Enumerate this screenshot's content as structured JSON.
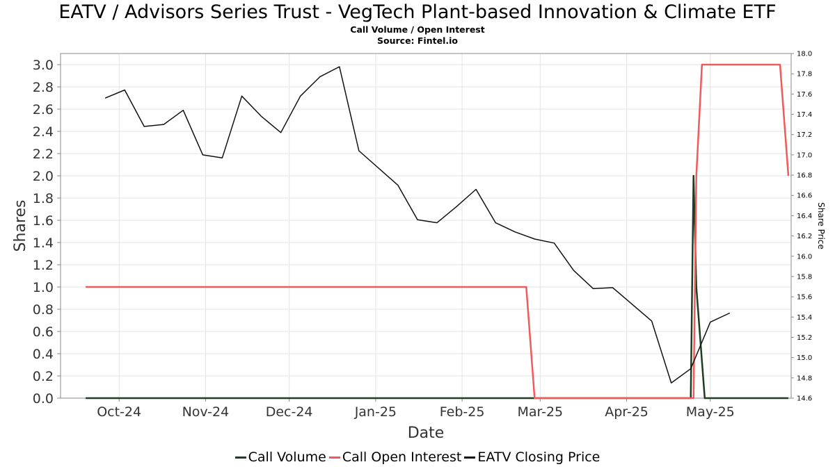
{
  "header": {
    "title": "EATV / Advisors Series Trust - VegTech Plant-based Innovation & Climate ETF",
    "subtitle_1": "Call Volume / Open Interest",
    "subtitle_2": "Source: Fintel.io"
  },
  "legend": {
    "items": [
      {
        "label": "Call Volume",
        "color": "#1e3d23"
      },
      {
        "label": "Call Open Interest",
        "color": "#f05a5a"
      },
      {
        "label": "EATV Closing Price",
        "color": "#111111"
      }
    ]
  },
  "chart_data": {
    "type": "line",
    "xlabel": "Date",
    "ylabel": "Shares",
    "y2label": "Share Price",
    "x_tick_labels": [
      "Oct-24",
      "Nov-24",
      "Dec-24",
      "Jan-25",
      "Feb-25",
      "Mar-25",
      "Apr-25",
      "May-25"
    ],
    "x_tick_dates": [
      "2024-10-01",
      "2024-11-01",
      "2024-12-01",
      "2025-01-01",
      "2025-02-01",
      "2025-03-01",
      "2025-04-01",
      "2025-05-01"
    ],
    "xlim": [
      "2024-09-10",
      "2025-05-30"
    ],
    "ylim": [
      0,
      3.1
    ],
    "y_ticks": [
      "0.0",
      "0.2",
      "0.4",
      "0.6",
      "0.8",
      "1.0",
      "1.2",
      "1.4",
      "1.6",
      "1.8",
      "2.0",
      "2.2",
      "2.4",
      "2.6",
      "2.8",
      "3.0"
    ],
    "y2lim": [
      14.6,
      18.0
    ],
    "y2_ticks": [
      "14.6",
      "14.8",
      "15.0",
      "15.2",
      "15.4",
      "15.6",
      "15.8",
      "16.0",
      "16.2",
      "16.4",
      "16.6",
      "16.8",
      "17.0",
      "17.2",
      "17.4",
      "17.6",
      "17.8",
      "18.0"
    ],
    "grid": true,
    "legend_position": "bottom",
    "series": [
      {
        "name": "Call Volume",
        "color": "#1e3d23",
        "axis": "left",
        "points": [
          {
            "x": "2024-09-19",
            "y": 0
          },
          {
            "x": "2025-04-24",
            "y": 0
          },
          {
            "x": "2025-04-25",
            "y": 2.0
          },
          {
            "x": "2025-04-26",
            "y": 1.0
          },
          {
            "x": "2025-04-29",
            "y": 0
          },
          {
            "x": "2025-05-29",
            "y": 0
          }
        ]
      },
      {
        "name": "Call Open Interest",
        "color": "#f05a5a",
        "axis": "left",
        "points": [
          {
            "x": "2024-09-19",
            "y": 1.0
          },
          {
            "x": "2025-02-24",
            "y": 1.0
          },
          {
            "x": "2025-02-27",
            "y": 0
          },
          {
            "x": "2025-04-25",
            "y": 0
          },
          {
            "x": "2025-04-26",
            "y": 2.0
          },
          {
            "x": "2025-04-28",
            "y": 3.0
          },
          {
            "x": "2025-05-26",
            "y": 3.0
          },
          {
            "x": "2025-05-29",
            "y": 2.0
          }
        ]
      },
      {
        "name": "EATV Closing Price",
        "color": "#111111",
        "axis": "right",
        "points": [
          {
            "x": "2024-09-26",
            "y": 17.56
          },
          {
            "x": "2024-10-03",
            "y": 17.64
          },
          {
            "x": "2024-10-10",
            "y": 17.28
          },
          {
            "x": "2024-10-17",
            "y": 17.3
          },
          {
            "x": "2024-10-24",
            "y": 17.44
          },
          {
            "x": "2024-10-31",
            "y": 17.0
          },
          {
            "x": "2024-11-07",
            "y": 16.97
          },
          {
            "x": "2024-11-14",
            "y": 17.58
          },
          {
            "x": "2024-11-21",
            "y": 17.38
          },
          {
            "x": "2024-11-28",
            "y": 17.22
          },
          {
            "x": "2024-12-05",
            "y": 17.58
          },
          {
            "x": "2024-12-12",
            "y": 17.77
          },
          {
            "x": "2024-12-19",
            "y": 17.87
          },
          {
            "x": "2024-12-26",
            "y": 17.04
          },
          {
            "x": "2025-01-09",
            "y": 16.7
          },
          {
            "x": "2025-01-16",
            "y": 16.36
          },
          {
            "x": "2025-01-23",
            "y": 16.33
          },
          {
            "x": "2025-01-30",
            "y": 16.49
          },
          {
            "x": "2025-02-06",
            "y": 16.66
          },
          {
            "x": "2025-02-13",
            "y": 16.33
          },
          {
            "x": "2025-02-20",
            "y": 16.24
          },
          {
            "x": "2025-02-27",
            "y": 16.17
          },
          {
            "x": "2025-03-06",
            "y": 16.13
          },
          {
            "x": "2025-03-13",
            "y": 15.86
          },
          {
            "x": "2025-03-20",
            "y": 15.68
          },
          {
            "x": "2025-03-27",
            "y": 15.69
          },
          {
            "x": "2025-04-10",
            "y": 15.36
          },
          {
            "x": "2025-04-17",
            "y": 14.75
          },
          {
            "x": "2025-04-24",
            "y": 14.89
          },
          {
            "x": "2025-05-01",
            "y": 15.35
          },
          {
            "x": "2025-05-08",
            "y": 15.44
          }
        ]
      }
    ]
  }
}
